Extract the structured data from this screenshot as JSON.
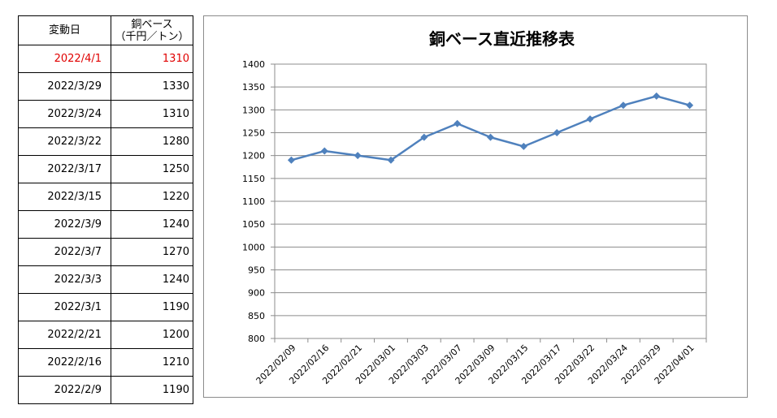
{
  "table": {
    "header_date": "変動日",
    "header_price_line1": "銅ベース",
    "header_price_line2": "（千円／トン）",
    "highlight_color": "#e00000",
    "rows": [
      {
        "date": "2022/4/1",
        "price": "1310",
        "highlight": true
      },
      {
        "date": "2022/3/29",
        "price": "1330"
      },
      {
        "date": "2022/3/24",
        "price": "1310"
      },
      {
        "date": "2022/3/22",
        "price": "1280"
      },
      {
        "date": "2022/3/17",
        "price": "1250"
      },
      {
        "date": "2022/3/15",
        "price": "1220"
      },
      {
        "date": "2022/3/9",
        "price": "1240"
      },
      {
        "date": "2022/3/7",
        "price": "1270"
      },
      {
        "date": "2022/3/3",
        "price": "1240"
      },
      {
        "date": "2022/3/1",
        "price": "1190"
      },
      {
        "date": "2022/2/21",
        "price": "1200"
      },
      {
        "date": "2022/2/16",
        "price": "1210"
      },
      {
        "date": "2022/2/9",
        "price": "1190"
      }
    ]
  },
  "chart_data": {
    "type": "line",
    "title": "銅ベース直近推移表",
    "xlabel": "",
    "ylabel": "",
    "categories": [
      "2022/02/09",
      "2022/02/16",
      "2022/02/21",
      "2022/03/01",
      "2022/03/03",
      "2022/03/07",
      "2022/03/09",
      "2022/03/15",
      "2022/03/17",
      "2022/03/22",
      "2022/03/24",
      "2022/03/29",
      "2022/04/01"
    ],
    "values": [
      1190,
      1210,
      1200,
      1190,
      1240,
      1270,
      1240,
      1220,
      1250,
      1280,
      1310,
      1330,
      1310
    ],
    "ylim": [
      800,
      1400
    ],
    "y_ticks": [
      800,
      850,
      900,
      950,
      1000,
      1050,
      1100,
      1150,
      1200,
      1250,
      1300,
      1350,
      1400
    ],
    "grid": true,
    "line_color": "#4f81bd",
    "marker": "diamond"
  }
}
